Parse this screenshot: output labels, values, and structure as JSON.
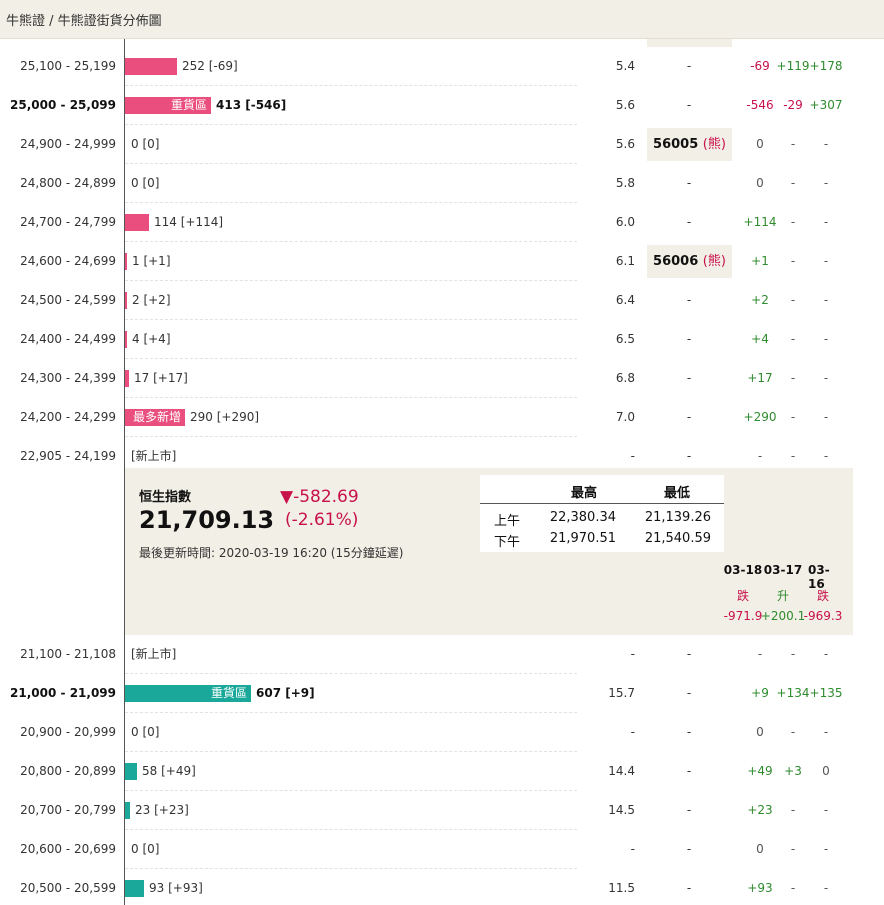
{
  "breadcrumb": {
    "text": "牛熊證 / 牛熊證街貨分佈圖"
  },
  "rows_top": [
    {
      "range": "25,100 - 25,199",
      "bold": false,
      "bar": {
        "color": "pink",
        "tag": ""
      },
      "count": "252 [-69]",
      "pct": "5.4",
      "cbbc": "-",
      "d1": "-69",
      "d2": "+119",
      "d3": "+178"
    },
    {
      "range": "25,000 - 25,099",
      "bold": true,
      "bar": {
        "color": "pink",
        "tag": "重貨區"
      },
      "count": "413 [-546]",
      "pct": "5.6",
      "cbbc": "-",
      "d1": "-546",
      "d2": "-29",
      "d3": "+307"
    },
    {
      "range": "24,900 - 24,999",
      "bold": false,
      "bar": null,
      "count": "0 [0]",
      "pct": "5.6",
      "cbbc_code": "56005",
      "cbbc_type": "(熊)",
      "d1": "0",
      "d2": "-",
      "d3": "-"
    },
    {
      "range": "24,800 - 24,899",
      "bold": false,
      "bar": null,
      "count": "0 [0]",
      "pct": "5.8",
      "cbbc": "-",
      "d1": "0",
      "d2": "-",
      "d3": "-"
    },
    {
      "range": "24,700 - 24,799",
      "bold": false,
      "bar": {
        "color": "pink",
        "tag": ""
      },
      "count": "114 [+114]",
      "pct": "6.0",
      "cbbc": "-",
      "d1": "+114",
      "d2": "-",
      "d3": "-"
    },
    {
      "range": "24,600 - 24,699",
      "bold": false,
      "bar": {
        "color": "pink",
        "tag": ""
      },
      "count": "1 [+1]",
      "pct": "6.1",
      "cbbc_code": "56006",
      "cbbc_type": "(熊)",
      "d1": "+1",
      "d2": "-",
      "d3": "-"
    },
    {
      "range": "24,500 - 24,599",
      "bold": false,
      "bar": {
        "color": "pink",
        "tag": ""
      },
      "count": "2 [+2]",
      "pct": "6.4",
      "cbbc": "-",
      "d1": "+2",
      "d2": "-",
      "d3": "-"
    },
    {
      "range": "24,400 - 24,499",
      "bold": false,
      "bar": {
        "color": "pink",
        "tag": ""
      },
      "count": "4 [+4]",
      "pct": "6.5",
      "cbbc": "-",
      "d1": "+4",
      "d2": "-",
      "d3": "-"
    },
    {
      "range": "24,300 - 24,399",
      "bold": false,
      "bar": {
        "color": "pink",
        "tag": ""
      },
      "count": "17 [+17]",
      "pct": "6.8",
      "cbbc": "-",
      "d1": "+17",
      "d2": "-",
      "d3": "-"
    },
    {
      "range": "24,200 - 24,299",
      "bold": false,
      "bar": {
        "color": "pink",
        "tag": "最多新增"
      },
      "count": "290 [+290]",
      "pct": "7.0",
      "cbbc": "-",
      "d1": "+290",
      "d2": "-",
      "d3": "-"
    },
    {
      "range": "22,905 - 24,199",
      "bold": false,
      "bar": null,
      "count": "[新上市]",
      "pct": "-",
      "cbbc": "-",
      "d1": "-",
      "d2": "-",
      "d3": "-"
    }
  ],
  "hsi": {
    "label": "恒生指數",
    "value": "21,709.13",
    "change": "▼-582.69",
    "change_pct": "(-2.61%)",
    "updated": "最後更新時間: 2020-03-19 16:20 (15分鐘延遲)",
    "table": {
      "col_high": "最高",
      "col_low": "最低",
      "rows": [
        {
          "label": "上午",
          "high": "22,380.34",
          "low": "21,139.26"
        },
        {
          "label": "下午",
          "high": "21,970.51",
          "low": "21,540.59"
        }
      ]
    },
    "days": [
      {
        "date": "03-18",
        "dir": "跌",
        "change": "-971.9",
        "up": false
      },
      {
        "date": "03-17",
        "dir": "升",
        "change": "+200.1",
        "up": true
      },
      {
        "date": "03-16",
        "dir": "跌",
        "change": "-969.3",
        "up": false
      }
    ]
  },
  "rows_bottom": [
    {
      "range": "21,100 - 21,108",
      "bold": false,
      "bar": null,
      "count": "[新上市]",
      "pct": "-",
      "cbbc": "-",
      "d1": "-",
      "d2": "-",
      "d3": "-"
    },
    {
      "range": "21,000 - 21,099",
      "bold": true,
      "bar": {
        "color": "teal",
        "tag": "重貨區"
      },
      "count": "607 [+9]",
      "pct": "15.7",
      "cbbc": "-",
      "d1": "+9",
      "d2": "+134",
      "d3": "+135"
    },
    {
      "range": "20,900 - 20,999",
      "bold": false,
      "bar": null,
      "count": "0 [0]",
      "pct": "-",
      "cbbc": "-",
      "d1": "0",
      "d2": "-",
      "d3": "-"
    },
    {
      "range": "20,800 - 20,899",
      "bold": false,
      "bar": {
        "color": "teal",
        "tag": ""
      },
      "count": "58 [+49]",
      "pct": "14.4",
      "cbbc": "-",
      "d1": "+49",
      "d2": "+3",
      "d3": "0"
    },
    {
      "range": "20,700 - 20,799",
      "bold": false,
      "bar": {
        "color": "teal",
        "tag": ""
      },
      "count": "23 [+23]",
      "pct": "14.5",
      "cbbc": "-",
      "d1": "+23",
      "d2": "-",
      "d3": "-"
    },
    {
      "range": "20,600 - 20,699",
      "bold": false,
      "bar": null,
      "count": "0 [0]",
      "pct": "-",
      "cbbc": "-",
      "d1": "0",
      "d2": "-",
      "d3": "-"
    },
    {
      "range": "20,500 - 20,599",
      "bold": false,
      "bar": {
        "color": "teal",
        "tag": ""
      },
      "count": "93 [+93]",
      "pct": "11.5",
      "cbbc": "-",
      "d1": "+93",
      "d2": "-",
      "d3": "-"
    }
  ],
  "colors": {
    "bull": "#1aa89a",
    "bear": "#e94e7f",
    "up": "#2e8b2e",
    "down": "#c8104a",
    "panel": "#f2efe6"
  }
}
